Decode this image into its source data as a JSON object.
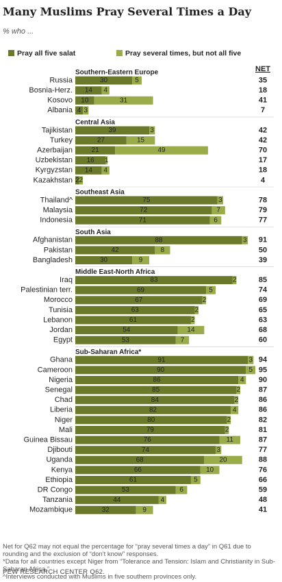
{
  "chart_data": {
    "type": "bar",
    "stacked": true,
    "orientation": "horizontal",
    "title": "Many Muslims Pray Several Times a Day",
    "subtitle": "% who ...",
    "series": [
      {
        "name": "Pray all five salat",
        "color": "#6b7a2a"
      },
      {
        "name": "Pray several times, but not all five",
        "color": "#9aab4a"
      }
    ],
    "net_label": "NET",
    "xlim": [
      0,
      100
    ],
    "groups": [
      {
        "name": "Southern-Eastern  Europe",
        "categories": [
          "Russia",
          "Bosnia-Herz.",
          "Kosovo",
          "Albania"
        ],
        "series": [
          {
            "values": [
              30,
              14,
              10,
              4
            ]
          },
          {
            "values": [
              5,
              4,
              31,
              3
            ]
          }
        ],
        "net": [
          35,
          18,
          41,
          7
        ]
      },
      {
        "name": "Central Asia",
        "categories": [
          "Tajikistan",
          "Turkey",
          "Azerbaijan",
          "Uzbekistan",
          "Kyrgyzstan",
          "Kazakhstan"
        ],
        "series": [
          {
            "values": [
              39,
              27,
              21,
              16,
              14,
              2
            ]
          },
          {
            "values": [
              3,
              15,
              49,
              1,
              4,
              2
            ]
          }
        ],
        "net": [
          42,
          42,
          70,
          17,
          18,
          4
        ]
      },
      {
        "name": "Southeast  Asia",
        "categories": [
          "Thailand^",
          "Malaysia",
          "Indonesia"
        ],
        "series": [
          {
            "values": [
              75,
              72,
              71
            ]
          },
          {
            "values": [
              3,
              7,
              6
            ]
          }
        ],
        "net": [
          78,
          79,
          77
        ]
      },
      {
        "name": "South Asia",
        "categories": [
          "Afghanistan",
          "Pakistan",
          "Bangladesh"
        ],
        "series": [
          {
            "values": [
              88,
              42,
              30
            ]
          },
          {
            "values": [
              3,
              8,
              9
            ]
          }
        ],
        "net": [
          91,
          50,
          39
        ]
      },
      {
        "name": "Middle East-North Africa",
        "categories": [
          "Iraq",
          "Palestinian terr.",
          "Morocco",
          "Tunisia",
          "Lebanon",
          "Jordan",
          "Egypt"
        ],
        "series": [
          {
            "values": [
              83,
              69,
              67,
              63,
              61,
              54,
              53
            ]
          },
          {
            "values": [
              2,
              5,
              2,
              2,
              2,
              14,
              7
            ]
          }
        ],
        "net": [
          85,
          74,
          69,
          65,
          63,
          68,
          60
        ]
      },
      {
        "name": "Sub-Saharan  Africa*",
        "categories": [
          "Ghana",
          "Cameroon",
          "Nigeria",
          "Senegal",
          "Chad",
          "Liberia",
          "Niger",
          "Mali",
          "Guinea Bissau",
          "Djibouti",
          "Uganda",
          "Kenya",
          "Ethiopia",
          "DR Congo",
          "Tanzania",
          "Mozambique"
        ],
        "series": [
          {
            "values": [
              91,
              90,
              86,
              85,
              84,
              82,
              80,
              79,
              76,
              74,
              68,
              66,
              61,
              53,
              44,
              32
            ]
          },
          {
            "values": [
              3,
              5,
              4,
              2,
              2,
              4,
              2,
              2,
              11,
              3,
              20,
              10,
              5,
              6,
              4,
              9
            ]
          }
        ],
        "net": [
          94,
          95,
          90,
          87,
          86,
          86,
          82,
          81,
          87,
          77,
          88,
          76,
          66,
          59,
          48,
          41
        ]
      }
    ],
    "notes": [
      "Net for Q62 may not equal the percentage for “pray several times a day” in Q61 due to rounding and the exclusion of “don't know” responses.",
      "*Data for all countries except Niger from “Tolerance and Tension: Islam and Christianity in Sub-Saharan Africa.”",
      "^Interviews conducted with Muslims in five southern provinces only."
    ],
    "source": "PEW RESEARCH CENTER Q62."
  }
}
